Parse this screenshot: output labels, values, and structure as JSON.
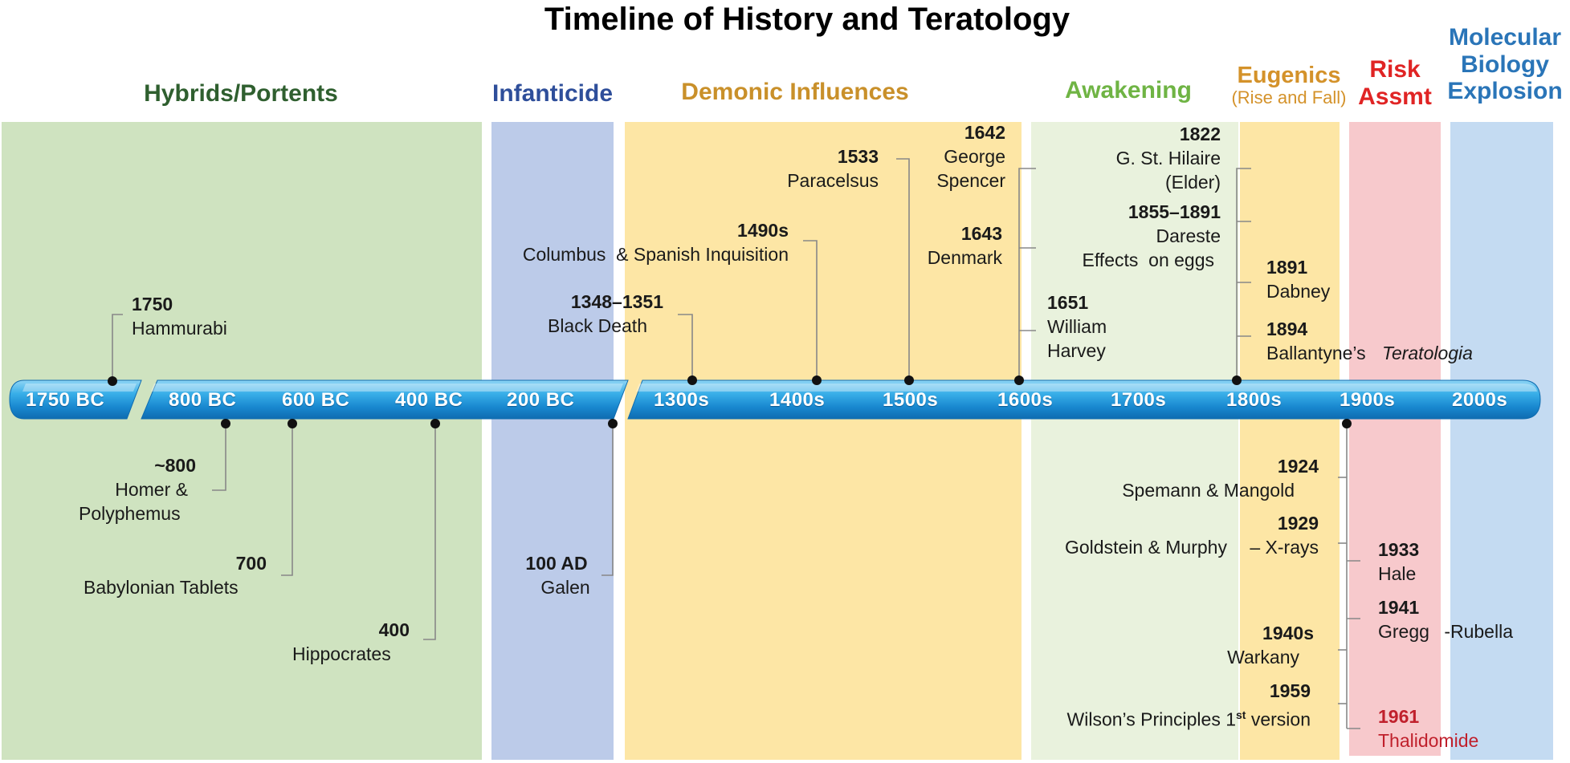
{
  "title": "Timeline of History and Teratology",
  "eras": [
    {
      "label": "Hybrids/Portents",
      "color": "#2f5f2f"
    },
    {
      "label": "Infanticide",
      "color": "#2e4e9a"
    },
    {
      "label": "Demonic Influences",
      "color": "#c9902a"
    },
    {
      "label": "Awakening",
      "color": "#6fb444"
    },
    {
      "label": "Eugenics",
      "sub": "(Rise and Fall)",
      "color": "#d4922a"
    },
    {
      "label": "Risk",
      "label2": "Assmt",
      "color": "#e02424"
    },
    {
      "label": "Molecular",
      "label2": "Biology",
      "label3": "Explosion",
      "color": "#2a75b8"
    }
  ],
  "axis_labels": [
    "1750 BC",
    "800 BC",
    "600 BC",
    "400 BC",
    "200 BC",
    "1300s",
    "1400s",
    "1500s",
    "1600s",
    "1700s",
    "1800s",
    "1900s",
    "2000s"
  ],
  "events": {
    "hammurabi": {
      "year": "1750",
      "name": "Hammurabi"
    },
    "homer": {
      "year": "~800",
      "name1": "Homer &",
      "name2": "Polyphemus"
    },
    "babylonian": {
      "year": "700",
      "name": "Babylonian Tablets"
    },
    "hippocrates": {
      "year": "400",
      "name": "Hippocrates"
    },
    "galen": {
      "year": "100 AD",
      "name": "Galen"
    },
    "black_death": {
      "year": "1348–1351",
      "name": "Black Death"
    },
    "columbus": {
      "year": "1490s",
      "name": "Columbus  & Spanish Inquisition"
    },
    "paracelsus": {
      "year": "1533",
      "name": "Paracelsus"
    },
    "spencer": {
      "year": "1642",
      "name1": "George",
      "name2": "Spencer"
    },
    "denmark": {
      "year": "1643",
      "name": "Denmark"
    },
    "harvey": {
      "year": "1651",
      "name1": "William",
      "name2": "Harvey"
    },
    "hilaire": {
      "year": "1822",
      "name1": "G. St. Hilaire",
      "name2": "(Elder)"
    },
    "dareste": {
      "year": "1855–1891",
      "name1": "Dareste",
      "name2": "Effects  on eggs"
    },
    "dabney": {
      "year": "1891",
      "name": "Dabney"
    },
    "ballantyne": {
      "year": "1894",
      "name": "Ballantyne’s",
      "italic": "Teratologia"
    },
    "spemann": {
      "year": "1924",
      "name": "Spemann & Mangold"
    },
    "goldstein": {
      "year": "1929",
      "name": "Goldstein & Murphy",
      "name2": "– X-rays"
    },
    "warkany": {
      "year": "1940s",
      "name": "Warkany"
    },
    "wilson": {
      "year": "1959",
      "name": "Wilson’s Principles 1",
      "sup": "st",
      "name2": " version"
    },
    "hale": {
      "year": "1933",
      "name": "Hale"
    },
    "gregg": {
      "year": "1941",
      "name": "Gregg",
      "name2": "-Rubella"
    },
    "thalidomide": {
      "year": "1961",
      "name": "Thalidomide",
      "color": "#c0202c"
    }
  }
}
